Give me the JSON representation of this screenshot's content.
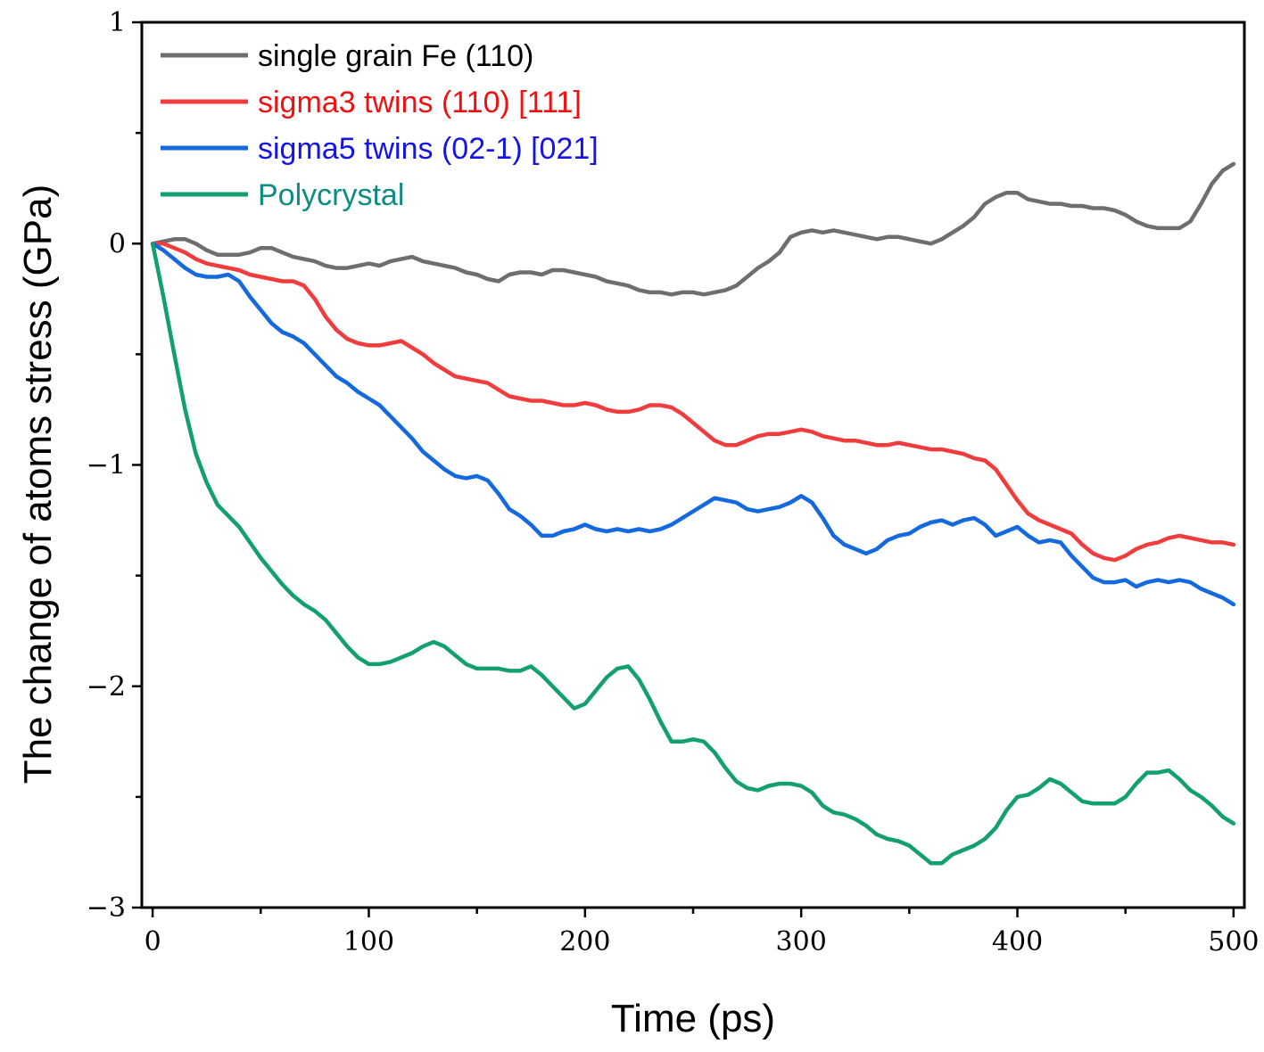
{
  "chart_data": {
    "type": "line",
    "title": "",
    "xlabel": "Time (ps)",
    "ylabel": "The change of atoms stress (GPa)",
    "xlim": [
      -5,
      505
    ],
    "ylim": [
      -3,
      1
    ],
    "x_ticks": [
      0,
      100,
      200,
      300,
      400,
      500
    ],
    "x_tick_labels": [
      "0",
      "100",
      "200",
      "300",
      "400",
      "500"
    ],
    "y_ticks": [
      1,
      0,
      -1,
      -2,
      -3
    ],
    "y_tick_labels": [
      "1",
      "0",
      "−1",
      "−2",
      "−3"
    ],
    "legend_position": "top-left",
    "series": [
      {
        "name": "single grain Fe (110)",
        "color": "#6e6e6e",
        "label_color": "#000000",
        "x": [
          0,
          5,
          10,
          15,
          20,
          25,
          30,
          35,
          40,
          45,
          50,
          55,
          60,
          65,
          70,
          75,
          80,
          85,
          90,
          95,
          100,
          105,
          110,
          115,
          120,
          125,
          130,
          135,
          140,
          145,
          150,
          155,
          160,
          165,
          170,
          175,
          180,
          185,
          190,
          195,
          200,
          205,
          210,
          215,
          220,
          225,
          230,
          235,
          240,
          245,
          250,
          255,
          260,
          265,
          270,
          275,
          280,
          285,
          290,
          295,
          300,
          305,
          310,
          315,
          320,
          325,
          330,
          335,
          340,
          345,
          350,
          355,
          360,
          365,
          370,
          375,
          380,
          385,
          390,
          395,
          400,
          405,
          410,
          415,
          420,
          425,
          430,
          435,
          440,
          445,
          450,
          455,
          460,
          465,
          470,
          475,
          480,
          485,
          490,
          495,
          500
        ],
        "y": [
          0,
          0.01,
          0.02,
          0.02,
          0.0,
          -0.03,
          -0.05,
          -0.05,
          -0.05,
          -0.04,
          -0.02,
          -0.02,
          -0.04,
          -0.06,
          -0.07,
          -0.08,
          -0.1,
          -0.11,
          -0.11,
          -0.1,
          -0.09,
          -0.1,
          -0.08,
          -0.07,
          -0.06,
          -0.08,
          -0.09,
          -0.1,
          -0.11,
          -0.13,
          -0.14,
          -0.16,
          -0.17,
          -0.14,
          -0.13,
          -0.13,
          -0.14,
          -0.12,
          -0.12,
          -0.13,
          -0.14,
          -0.15,
          -0.17,
          -0.18,
          -0.19,
          -0.21,
          -0.22,
          -0.22,
          -0.23,
          -0.22,
          -0.22,
          -0.23,
          -0.22,
          -0.21,
          -0.19,
          -0.15,
          -0.11,
          -0.08,
          -0.04,
          0.03,
          0.05,
          0.06,
          0.05,
          0.06,
          0.05,
          0.04,
          0.03,
          0.02,
          0.03,
          0.03,
          0.02,
          0.01,
          0.0,
          0.02,
          0.05,
          0.08,
          0.12,
          0.18,
          0.21,
          0.23,
          0.23,
          0.2,
          0.19,
          0.18,
          0.18,
          0.17,
          0.17,
          0.16,
          0.16,
          0.15,
          0.13,
          0.1,
          0.08,
          0.07,
          0.07,
          0.07,
          0.1,
          0.18,
          0.27,
          0.33,
          0.36
        ]
      },
      {
        "name": "sigma3 twins (110) [111]",
        "color": "#f03c3c",
        "label_color": "#ee1111",
        "x": [
          0,
          5,
          10,
          15,
          20,
          25,
          30,
          35,
          40,
          45,
          50,
          55,
          60,
          65,
          70,
          75,
          80,
          85,
          90,
          95,
          100,
          105,
          110,
          115,
          120,
          125,
          130,
          135,
          140,
          145,
          150,
          155,
          160,
          165,
          170,
          175,
          180,
          185,
          190,
          195,
          200,
          205,
          210,
          215,
          220,
          225,
          230,
          235,
          240,
          245,
          250,
          255,
          260,
          265,
          270,
          275,
          280,
          285,
          290,
          295,
          300,
          305,
          310,
          315,
          320,
          325,
          330,
          335,
          340,
          345,
          350,
          355,
          360,
          365,
          370,
          375,
          380,
          385,
          390,
          395,
          400,
          405,
          410,
          415,
          420,
          425,
          430,
          435,
          440,
          445,
          450,
          455,
          460,
          465,
          470,
          475,
          480,
          485,
          490,
          495,
          500
        ],
        "y": [
          0,
          0.0,
          -0.02,
          -0.04,
          -0.07,
          -0.09,
          -0.1,
          -0.11,
          -0.12,
          -0.14,
          -0.15,
          -0.16,
          -0.17,
          -0.17,
          -0.19,
          -0.25,
          -0.33,
          -0.39,
          -0.43,
          -0.45,
          -0.46,
          -0.46,
          -0.45,
          -0.44,
          -0.47,
          -0.5,
          -0.54,
          -0.57,
          -0.6,
          -0.61,
          -0.62,
          -0.63,
          -0.66,
          -0.69,
          -0.7,
          -0.71,
          -0.71,
          -0.72,
          -0.73,
          -0.73,
          -0.72,
          -0.73,
          -0.75,
          -0.76,
          -0.76,
          -0.75,
          -0.73,
          -0.73,
          -0.74,
          -0.77,
          -0.81,
          -0.85,
          -0.89,
          -0.91,
          -0.91,
          -0.89,
          -0.87,
          -0.86,
          -0.86,
          -0.85,
          -0.84,
          -0.85,
          -0.87,
          -0.88,
          -0.89,
          -0.89,
          -0.9,
          -0.91,
          -0.91,
          -0.9,
          -0.91,
          -0.92,
          -0.93,
          -0.93,
          -0.94,
          -0.95,
          -0.97,
          -0.98,
          -1.02,
          -1.09,
          -1.16,
          -1.22,
          -1.25,
          -1.27,
          -1.29,
          -1.31,
          -1.36,
          -1.4,
          -1.42,
          -1.43,
          -1.41,
          -1.38,
          -1.36,
          -1.35,
          -1.33,
          -1.32,
          -1.33,
          -1.34,
          -1.35,
          -1.35,
          -1.36
        ]
      },
      {
        "name": "sigma5 twins (02-1) [021]",
        "color": "#1469dc",
        "label_color": "#1414e6",
        "x": [
          0,
          5,
          10,
          15,
          20,
          25,
          30,
          35,
          40,
          45,
          50,
          55,
          60,
          65,
          70,
          75,
          80,
          85,
          90,
          95,
          100,
          105,
          110,
          115,
          120,
          125,
          130,
          135,
          140,
          145,
          150,
          155,
          160,
          165,
          170,
          175,
          180,
          185,
          190,
          195,
          200,
          205,
          210,
          215,
          220,
          225,
          230,
          235,
          240,
          245,
          250,
          255,
          260,
          265,
          270,
          275,
          280,
          285,
          290,
          295,
          300,
          305,
          310,
          315,
          320,
          325,
          330,
          335,
          340,
          345,
          350,
          355,
          360,
          365,
          370,
          375,
          380,
          385,
          390,
          395,
          400,
          405,
          410,
          415,
          420,
          425,
          430,
          435,
          440,
          445,
          450,
          455,
          460,
          465,
          470,
          475,
          480,
          485,
          490,
          495,
          500
        ],
        "y": [
          0,
          -0.03,
          -0.07,
          -0.11,
          -0.14,
          -0.15,
          -0.15,
          -0.14,
          -0.17,
          -0.24,
          -0.3,
          -0.36,
          -0.4,
          -0.42,
          -0.45,
          -0.5,
          -0.55,
          -0.6,
          -0.63,
          -0.67,
          -0.7,
          -0.73,
          -0.78,
          -0.83,
          -0.88,
          -0.94,
          -0.98,
          -1.02,
          -1.05,
          -1.06,
          -1.05,
          -1.07,
          -1.13,
          -1.2,
          -1.23,
          -1.27,
          -1.32,
          -1.32,
          -1.3,
          -1.29,
          -1.27,
          -1.29,
          -1.3,
          -1.29,
          -1.3,
          -1.29,
          -1.3,
          -1.29,
          -1.27,
          -1.24,
          -1.21,
          -1.18,
          -1.15,
          -1.16,
          -1.17,
          -1.2,
          -1.21,
          -1.2,
          -1.19,
          -1.17,
          -1.14,
          -1.17,
          -1.24,
          -1.32,
          -1.36,
          -1.38,
          -1.4,
          -1.38,
          -1.34,
          -1.32,
          -1.31,
          -1.28,
          -1.26,
          -1.25,
          -1.27,
          -1.25,
          -1.24,
          -1.27,
          -1.32,
          -1.3,
          -1.28,
          -1.32,
          -1.35,
          -1.34,
          -1.35,
          -1.41,
          -1.46,
          -1.51,
          -1.53,
          -1.53,
          -1.52,
          -1.55,
          -1.53,
          -1.52,
          -1.53,
          -1.52,
          -1.53,
          -1.56,
          -1.58,
          -1.6,
          -1.63
        ]
      },
      {
        "name": "Polycrystal",
        "color": "#14a06e",
        "label_color": "#0f8c82",
        "x": [
          0,
          5,
          10,
          15,
          20,
          25,
          30,
          35,
          40,
          45,
          50,
          55,
          60,
          65,
          70,
          75,
          80,
          85,
          90,
          95,
          100,
          105,
          110,
          115,
          120,
          125,
          130,
          135,
          140,
          145,
          150,
          155,
          160,
          165,
          170,
          175,
          180,
          185,
          190,
          195,
          200,
          205,
          210,
          215,
          220,
          225,
          230,
          235,
          240,
          245,
          250,
          255,
          260,
          265,
          270,
          275,
          280,
          285,
          290,
          295,
          300,
          305,
          310,
          315,
          320,
          325,
          330,
          335,
          340,
          345,
          350,
          355,
          360,
          365,
          370,
          375,
          380,
          385,
          390,
          395,
          400,
          405,
          410,
          415,
          420,
          425,
          430,
          435,
          440,
          445,
          450,
          455,
          460,
          465,
          470,
          475,
          480,
          485,
          490,
          495,
          500
        ],
        "y": [
          0,
          -0.24,
          -0.5,
          -0.75,
          -0.95,
          -1.08,
          -1.18,
          -1.23,
          -1.28,
          -1.35,
          -1.42,
          -1.48,
          -1.54,
          -1.59,
          -1.63,
          -1.66,
          -1.7,
          -1.76,
          -1.82,
          -1.87,
          -1.9,
          -1.9,
          -1.89,
          -1.87,
          -1.85,
          -1.82,
          -1.8,
          -1.82,
          -1.86,
          -1.9,
          -1.92,
          -1.92,
          -1.92,
          -1.93,
          -1.93,
          -1.91,
          -1.95,
          -2.0,
          -2.05,
          -2.1,
          -2.08,
          -2.02,
          -1.96,
          -1.92,
          -1.91,
          -1.97,
          -2.06,
          -2.16,
          -2.25,
          -2.25,
          -2.24,
          -2.25,
          -2.3,
          -2.37,
          -2.43,
          -2.46,
          -2.47,
          -2.45,
          -2.44,
          -2.44,
          -2.45,
          -2.48,
          -2.54,
          -2.57,
          -2.58,
          -2.6,
          -2.63,
          -2.67,
          -2.69,
          -2.7,
          -2.72,
          -2.76,
          -2.8,
          -2.8,
          -2.76,
          -2.74,
          -2.72,
          -2.69,
          -2.64,
          -2.56,
          -2.5,
          -2.49,
          -2.46,
          -2.42,
          -2.44,
          -2.48,
          -2.52,
          -2.53,
          -2.53,
          -2.53,
          -2.5,
          -2.44,
          -2.39,
          -2.39,
          -2.38,
          -2.42,
          -2.47,
          -2.5,
          -2.54,
          -2.59,
          -2.62
        ]
      }
    ]
  }
}
